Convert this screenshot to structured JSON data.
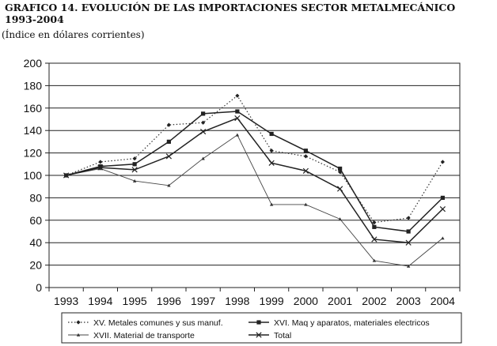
{
  "chart_data": {
    "type": "line",
    "title_line1": "GRAFICO 14.  EVOLUCIÓN DE LAS IMPORTACIONES SECTOR METALMECÁNICO",
    "title_line2": "1993-2004",
    "subtitle": "(Índice en dólares corrientes)",
    "categories": [
      "1993",
      "1994",
      "1995",
      "1996",
      "1997",
      "1998",
      "1999",
      "2000",
      "2001",
      "2002",
      "2003",
      "2004"
    ],
    "y_ticks": [
      "0",
      "20",
      "40",
      "60",
      "80",
      "100",
      "120",
      "140",
      "160",
      "180",
      "200"
    ],
    "ylim": [
      0,
      200
    ],
    "grid": true,
    "legend_position": "bottom",
    "series": [
      {
        "name": "XV. Metales comunes y sus manuf.",
        "style": "dotted",
        "marker": "diamond",
        "values": [
          100,
          112,
          115,
          145,
          147,
          171,
          122,
          117,
          103,
          58,
          62,
          112
        ]
      },
      {
        "name": "XVI. Maq y aparatos, materiales electricos",
        "style": "solid",
        "marker": "square",
        "values": [
          100,
          108,
          110,
          130,
          155,
          157,
          137,
          122,
          106,
          54,
          50,
          80
        ]
      },
      {
        "name": "XVII. Material de transporte",
        "style": "thin",
        "marker": "triangle",
        "values": [
          100,
          106,
          95,
          91,
          115,
          136,
          74,
          74,
          61,
          24,
          19,
          44
        ]
      },
      {
        "name": "Total",
        "style": "solid",
        "marker": "x",
        "values": [
          100,
          107,
          105,
          117,
          139,
          151,
          111,
          104,
          88,
          43,
          40,
          70
        ]
      }
    ]
  }
}
